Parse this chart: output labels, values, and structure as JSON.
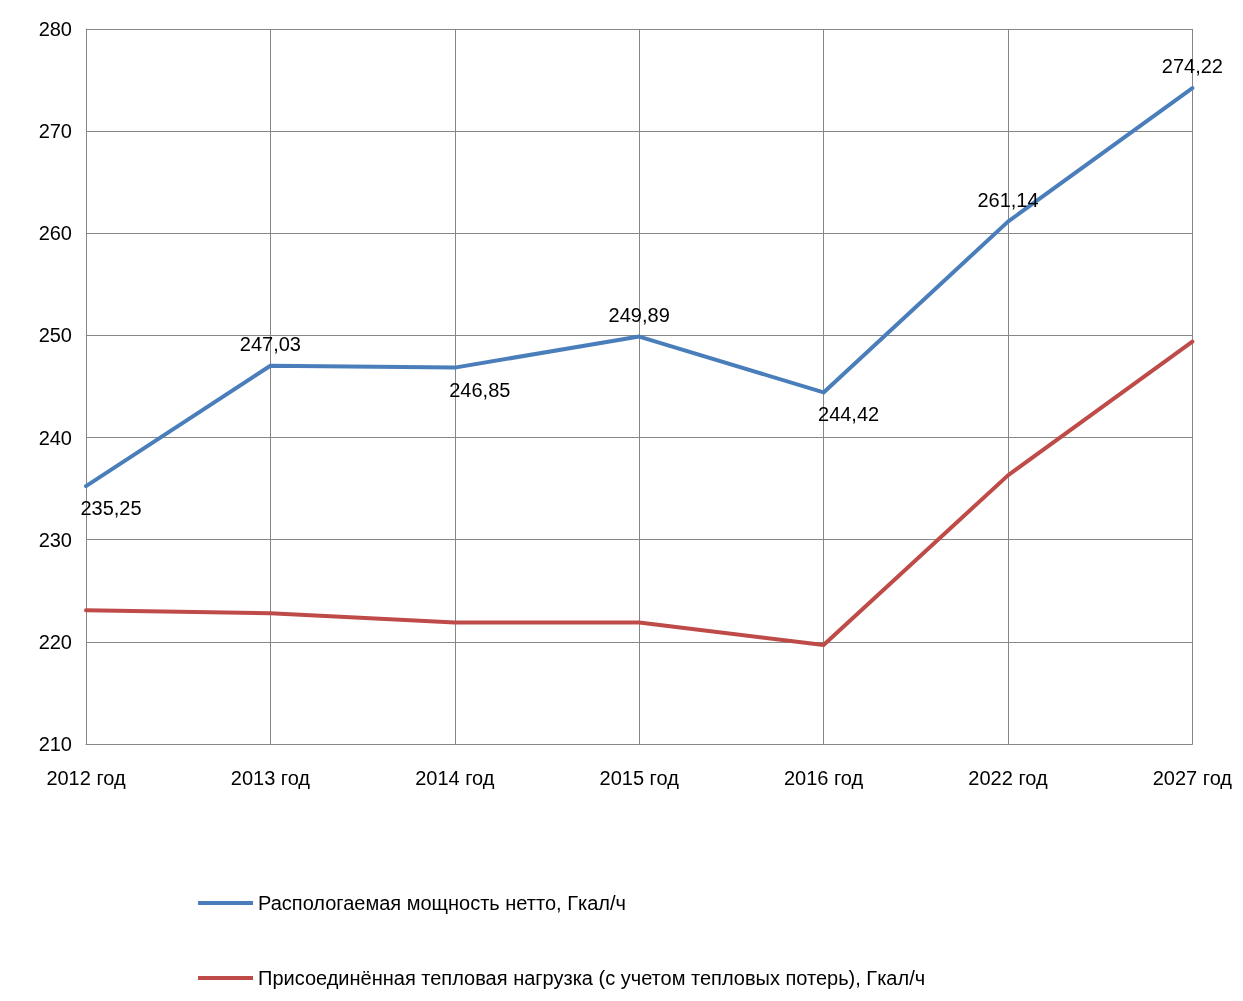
{
  "chart_data": {
    "type": "line",
    "categories": [
      "2012 год",
      "2013 год",
      "2014 год",
      "2015 год",
      "2016 год",
      "2022 год",
      "2027 год"
    ],
    "series": [
      {
        "name": "Распологаемая мощность нетто, Гкал/ч",
        "color": "#4a7ebb",
        "values": [
          235.25,
          247.03,
          246.85,
          249.89,
          244.42,
          261.14,
          274.22
        ],
        "value_labels": [
          "235,25",
          "247,03",
          "246,85",
          "249,89",
          "244,42",
          "261,14",
          "274,22"
        ]
      },
      {
        "name": "Присоединённая тепловая нагрузка (с учетом тепловых потерь), Гкал/ч",
        "color": "#be4b48",
        "values": [
          223.1,
          222.8,
          221.9,
          221.9,
          219.7,
          236.3,
          249.4
        ]
      }
    ],
    "ylim": [
      210,
      280
    ],
    "yticks": [
      210,
      220,
      230,
      240,
      250,
      260,
      270,
      280
    ],
    "grid": true,
    "legend": "bottom",
    "marker": "none",
    "line_style": "solid"
  }
}
